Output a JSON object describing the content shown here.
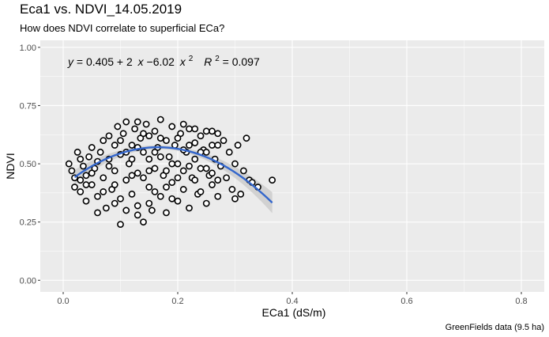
{
  "title": "Eca1 vs. NDVI_14.05.2019",
  "subtitle": "How does NDVI correlate to superficial ECa?",
  "caption": "GreenFields data (9.5 ha)",
  "colors": {
    "panel": "#ebebeb",
    "grid": "#ffffff",
    "points": "#000000",
    "fit": "#3366cc",
    "ribbon": "#c8c8c8"
  },
  "chart_data": {
    "type": "scatter",
    "xlabel": "ECa1 (dS/m)",
    "ylabel": "NDVI",
    "xlim": [
      -0.04,
      0.84
    ],
    "ylim": [
      -0.05,
      1.03
    ],
    "x_ticks": [
      0.0,
      0.2,
      0.4,
      0.6,
      0.8
    ],
    "x_tick_labels": [
      "0.0",
      "0.2",
      "0.4",
      "0.6",
      "0.8"
    ],
    "y_ticks": [
      0.0,
      0.25,
      0.5,
      0.75,
      1.0
    ],
    "y_tick_labels": [
      "0.00",
      "0.25",
      "0.50",
      "0.75",
      "1.00"
    ],
    "grid": true,
    "fit": {
      "type": "quadratic",
      "intercept": 0.405,
      "b1": 2,
      "b2": -6.02,
      "r2": 0.097,
      "x_range": [
        0.02,
        0.365
      ]
    },
    "annotation": {
      "y": "y",
      "eq": "= 0.405 + 2",
      "x1": "x",
      "minus": " −6.02",
      "x2": "x",
      "exp": "2",
      "R": "R",
      "r2": " = 0.097"
    },
    "points": [
      [
        0.01,
        0.5
      ],
      [
        0.015,
        0.47
      ],
      [
        0.02,
        0.44
      ],
      [
        0.025,
        0.55
      ],
      [
        0.03,
        0.52
      ],
      [
        0.03,
        0.38
      ],
      [
        0.035,
        0.49
      ],
      [
        0.04,
        0.45
      ],
      [
        0.04,
        0.34
      ],
      [
        0.045,
        0.53
      ],
      [
        0.05,
        0.57
      ],
      [
        0.05,
        0.41
      ],
      [
        0.055,
        0.48
      ],
      [
        0.06,
        0.36
      ],
      [
        0.06,
        0.29
      ],
      [
        0.065,
        0.55
      ],
      [
        0.07,
        0.6
      ],
      [
        0.07,
        0.44
      ],
      [
        0.075,
        0.31
      ],
      [
        0.08,
        0.52
      ],
      [
        0.08,
        0.62
      ],
      [
        0.085,
        0.39
      ],
      [
        0.09,
        0.47
      ],
      [
        0.09,
        0.58
      ],
      [
        0.095,
        0.66
      ],
      [
        0.1,
        0.24
      ],
      [
        0.1,
        0.35
      ],
      [
        0.1,
        0.54
      ],
      [
        0.105,
        0.63
      ],
      [
        0.11,
        0.43
      ],
      [
        0.11,
        0.68
      ],
      [
        0.115,
        0.5
      ],
      [
        0.12,
        0.58
      ],
      [
        0.12,
        0.37
      ],
      [
        0.125,
        0.65
      ],
      [
        0.13,
        0.32
      ],
      [
        0.13,
        0.46
      ],
      [
        0.135,
        0.61
      ],
      [
        0.14,
        0.25
      ],
      [
        0.14,
        0.55
      ],
      [
        0.145,
        0.67
      ],
      [
        0.15,
        0.4
      ],
      [
        0.15,
        0.52
      ],
      [
        0.155,
        0.3
      ],
      [
        0.16,
        0.64
      ],
      [
        0.16,
        0.48
      ],
      [
        0.165,
        0.57
      ],
      [
        0.17,
        0.36
      ],
      [
        0.17,
        0.69
      ],
      [
        0.175,
        0.45
      ],
      [
        0.18,
        0.6
      ],
      [
        0.18,
        0.29
      ],
      [
        0.185,
        0.53
      ],
      [
        0.19,
        0.66
      ],
      [
        0.19,
        0.42
      ],
      [
        0.195,
        0.58
      ],
      [
        0.2,
        0.34
      ],
      [
        0.2,
        0.5
      ],
      [
        0.205,
        0.63
      ],
      [
        0.21,
        0.47
      ],
      [
        0.21,
        0.39
      ],
      [
        0.215,
        0.55
      ],
      [
        0.22,
        0.65
      ],
      [
        0.22,
        0.31
      ],
      [
        0.225,
        0.44
      ],
      [
        0.23,
        0.59
      ],
      [
        0.23,
        0.52
      ],
      [
        0.235,
        0.37
      ],
      [
        0.24,
        0.62
      ],
      [
        0.24,
        0.48
      ],
      [
        0.245,
        0.56
      ],
      [
        0.25,
        0.33
      ],
      [
        0.25,
        0.64
      ],
      [
        0.255,
        0.45
      ],
      [
        0.26,
        0.58
      ],
      [
        0.26,
        0.41
      ],
      [
        0.265,
        0.52
      ],
      [
        0.27,
        0.63
      ],
      [
        0.27,
        0.36
      ],
      [
        0.275,
        0.49
      ],
      [
        0.28,
        0.6
      ],
      [
        0.285,
        0.44
      ],
      [
        0.29,
        0.55
      ],
      [
        0.295,
        0.39
      ],
      [
        0.3,
        0.5
      ],
      [
        0.3,
        0.35
      ],
      [
        0.305,
        0.58
      ],
      [
        0.31,
        0.37
      ],
      [
        0.315,
        0.47
      ],
      [
        0.32,
        0.61
      ],
      [
        0.325,
        0.43
      ],
      [
        0.33,
        0.42
      ],
      [
        0.34,
        0.4
      ],
      [
        0.365,
        0.43
      ],
      [
        0.12,
        0.52
      ],
      [
        0.13,
        0.57
      ],
      [
        0.14,
        0.44
      ],
      [
        0.15,
        0.62
      ],
      [
        0.16,
        0.38
      ],
      [
        0.17,
        0.53
      ],
      [
        0.18,
        0.47
      ],
      [
        0.19,
        0.35
      ],
      [
        0.2,
        0.61
      ],
      [
        0.21,
        0.56
      ],
      [
        0.22,
        0.49
      ],
      [
        0.23,
        0.43
      ],
      [
        0.24,
        0.38
      ],
      [
        0.25,
        0.55
      ],
      [
        0.26,
        0.46
      ],
      [
        0.27,
        0.58
      ],
      [
        0.08,
        0.49
      ],
      [
        0.09,
        0.41
      ],
      [
        0.1,
        0.6
      ],
      [
        0.11,
        0.55
      ],
      [
        0.12,
        0.45
      ],
      [
        0.13,
        0.68
      ],
      [
        0.14,
        0.63
      ],
      [
        0.15,
        0.47
      ],
      [
        0.16,
        0.55
      ],
      [
        0.17,
        0.61
      ],
      [
        0.06,
        0.51
      ],
      [
        0.07,
        0.38
      ],
      [
        0.05,
        0.46
      ],
      [
        0.04,
        0.41
      ],
      [
        0.03,
        0.43
      ],
      [
        0.02,
        0.4
      ],
      [
        0.09,
        0.33
      ],
      [
        0.11,
        0.3
      ],
      [
        0.13,
        0.28
      ],
      [
        0.15,
        0.33
      ],
      [
        0.18,
        0.4
      ],
      [
        0.19,
        0.5
      ],
      [
        0.2,
        0.44
      ],
      [
        0.21,
        0.67
      ],
      [
        0.22,
        0.58
      ],
      [
        0.23,
        0.65
      ],
      [
        0.24,
        0.55
      ],
      [
        0.25,
        0.48
      ],
      [
        0.26,
        0.64
      ],
      [
        0.27,
        0.43
      ]
    ]
  }
}
